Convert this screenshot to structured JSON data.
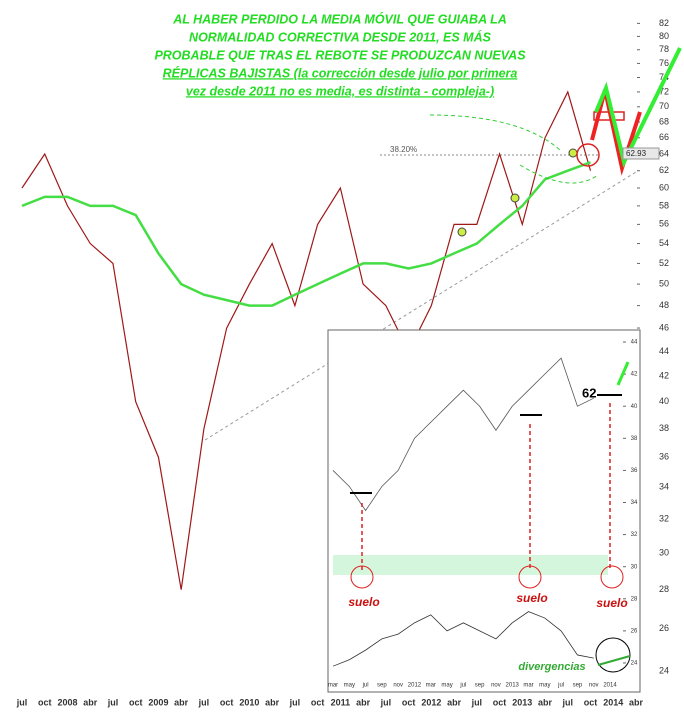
{
  "annotation_lines": [
    "AL HABER PERDIDO LA MEDIA MÓVIL QUE GUIABA LA",
    "NORMALIDAD CORRECTIVA DESDE 2011, ES MÁS",
    "PROBABLE QUE TRAS EL REBOTE SE PRODUZCAN NUEVAS",
    "RÉPLICAS BAJISTAS (la corrección desde julio por primera",
    "vez desde 2011 no es media, es distinta - compleja-)"
  ],
  "chart_data": [
    {
      "type": "line",
      "log_scale": true,
      "ylim": [
        23.5,
        83
      ],
      "yticks": [
        24,
        26,
        28,
        30,
        32,
        34,
        36,
        38,
        40,
        42,
        44,
        46,
        48,
        50,
        52,
        54,
        56,
        58,
        60,
        62,
        64,
        66,
        68,
        70,
        72,
        74,
        76,
        78,
        80,
        82
      ],
      "categories": [
        "jul",
        "oct",
        "2008",
        "abr",
        "jul",
        "oct",
        "2009",
        "abr",
        "jul",
        "oct",
        "2010",
        "abr",
        "jul",
        "oct",
        "2011",
        "abr",
        "jul",
        "oct",
        "2012",
        "abr",
        "jul",
        "oct",
        "2013",
        "abr",
        "jul",
        "oct",
        "2014",
        "abr"
      ],
      "series": [
        {
          "color": "#a01818",
          "values": [
            60,
            64,
            58,
            54,
            52,
            40,
            36,
            28,
            38,
            46,
            50,
            54,
            48,
            56,
            60,
            50,
            48,
            44,
            48,
            56,
            56,
            64,
            56,
            66,
            72,
            62,
            null,
            null
          ]
        },
        {
          "color": "#44dd44",
          "values": [
            58,
            59,
            59,
            58,
            58,
            57,
            53,
            50,
            49,
            48.5,
            48,
            48,
            49,
            50,
            51,
            52,
            52,
            51.5,
            52,
            53,
            54,
            56,
            58,
            61,
            62,
            63,
            null,
            null
          ]
        }
      ],
      "level_labels": [
        "38.20%",
        "62.93"
      ]
    },
    {
      "type": "line",
      "ylim": [
        23.5,
        44.5
      ],
      "yticks": [
        24,
        26,
        28,
        30,
        32,
        34,
        36,
        38,
        40,
        42,
        44
      ],
      "categories": [
        "mar",
        "may",
        "jul",
        "sep",
        "nov",
        "2012",
        "mar",
        "may",
        "jul",
        "sep",
        "nov",
        "2013",
        "mar",
        "may",
        "jul",
        "sep",
        "nov",
        "2014"
      ],
      "series": [
        {
          "color": "#555555",
          "values": [
            36,
            35,
            33.5,
            35,
            36,
            38,
            39,
            40,
            41,
            40,
            38.5,
            40,
            41,
            42,
            43,
            40,
            40.5,
            null
          ]
        },
        {
          "color": "#333333",
          "values": [
            23.8,
            24.2,
            24.8,
            25.5,
            25.8,
            26.5,
            27,
            26,
            26.5,
            26,
            25.5,
            26.5,
            27.2,
            26.8,
            26,
            24.5,
            24.3,
            null
          ]
        }
      ],
      "labels": [
        "62",
        "suelo",
        "suelo",
        "suelo",
        "divergencias"
      ]
    }
  ]
}
